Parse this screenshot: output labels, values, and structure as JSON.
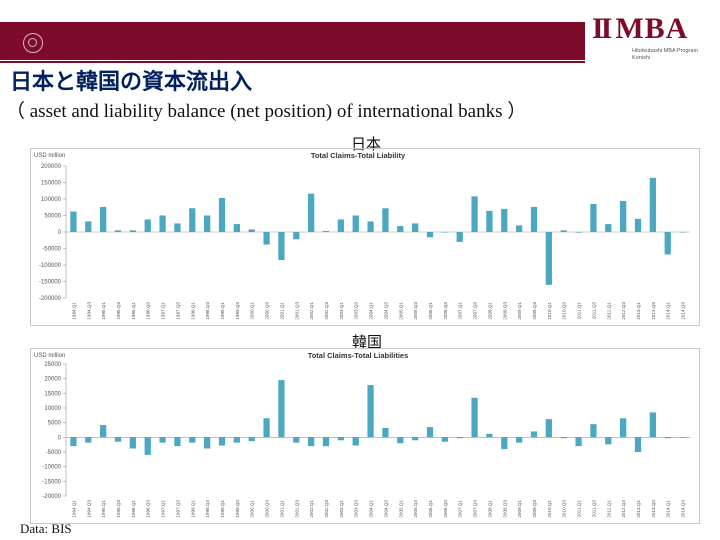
{
  "header": {
    "logo_mark": "MBA",
    "logo_ii": "II",
    "logo_line1": "Hitotsubashi MBA Program",
    "logo_line2": "Konishi"
  },
  "slide": {
    "title": "日本と韓国の資本流出入",
    "subtitle": "（ asset and liability balance (net position) of international banks ）",
    "source": "Data: BIS"
  },
  "colors": {
    "banner": "#7d0b2a",
    "bar": "#4ba8c0",
    "title": "#002060"
  },
  "chart_data": [
    {
      "type": "bar",
      "caption": "日本",
      "title": "Total Claims-Total Liability",
      "unit_label": "USD million",
      "yticks": [
        200000,
        150000,
        100000,
        50000,
        0,
        -50000,
        -100000,
        -150000,
        -200000
      ],
      "ytick_labels": [
        "200000",
        "150000",
        "100000",
        "50000",
        "0",
        "-50000",
        "-100000",
        "-150000",
        "-200000"
      ],
      "ylim": [
        -200000,
        200000
      ],
      "categories": [
        "1994.Q1",
        "1994.Q3",
        "1995.Q1",
        "1995.Q3",
        "1996.Q1",
        "1996.Q3",
        "1997.Q1",
        "1997.Q3",
        "1998.Q1",
        "1998.Q3",
        "1999.Q1",
        "1999.Q3",
        "2000.Q1",
        "2000.Q3",
        "2001.Q1",
        "2001.Q3",
        "2002.Q1",
        "2002.Q3",
        "2003.Q1",
        "2003.Q3",
        "2004.Q1",
        "2004.Q3",
        "2005.Q1",
        "2005.Q3",
        "2006.Q1",
        "2006.Q3",
        "2007.Q1",
        "2007.Q3",
        "2008.Q1",
        "2008.Q3",
        "2009.Q1",
        "2009.Q3",
        "2010.Q1",
        "2010.Q3",
        "2011.Q1",
        "2011.Q3",
        "2012.Q1",
        "2012.Q3",
        "2013.Q1",
        "2013.Q3",
        "2014.Q1",
        "2014.Q3"
      ],
      "values": [
        62000,
        32000,
        76000,
        5000,
        5000,
        38000,
        50000,
        26000,
        72000,
        50000,
        103000,
        24000,
        8000,
        -38000,
        -85000,
        -22000,
        116000,
        3000,
        38000,
        50000,
        32000,
        72000,
        18000,
        26000,
        -16000,
        0,
        -30000,
        108000,
        64000,
        70000,
        20000,
        76000,
        -160000,
        5000,
        -2000,
        85000,
        24000,
        94000,
        40000,
        164000,
        -68000,
        0
      ]
    },
    {
      "type": "bar",
      "caption": "韓国",
      "title": "Total Claims-Total Liabilities",
      "unit_label": "USD million",
      "yticks": [
        25000,
        20000,
        15000,
        10000,
        5000,
        0,
        -5000,
        -10000,
        -15000,
        -20000
      ],
      "ytick_labels": [
        "25000",
        "20000",
        "15000",
        "10000",
        "5000",
        "0",
        "-5000",
        "-10000",
        "-15000",
        "-20000"
      ],
      "ylim": [
        -20000,
        25000
      ],
      "categories": [
        "1994.Q1",
        "1994.Q3",
        "1995.Q1",
        "1995.Q3",
        "1996.Q1",
        "1996.Q3",
        "1997.Q1",
        "1997.Q3",
        "1998.Q1",
        "1998.Q3",
        "1999.Q1",
        "1999.Q3",
        "2000.Q1",
        "2000.Q3",
        "2001.Q1",
        "2001.Q3",
        "2002.Q1",
        "2002.Q3",
        "2003.Q1",
        "2003.Q3",
        "2004.Q1",
        "2004.Q3",
        "2005.Q1",
        "2005.Q3",
        "2006.Q1",
        "2006.Q3",
        "2007.Q1",
        "2007.Q3",
        "2008.Q1",
        "2008.Q3",
        "2009.Q1",
        "2009.Q3",
        "2010.Q1",
        "2010.Q3",
        "2011.Q1",
        "2011.Q3",
        "2012.Q1",
        "2012.Q3",
        "2013.Q1",
        "2013.Q3",
        "2014.Q1",
        "2014.Q3"
      ],
      "values": [
        -3000,
        -1800,
        4200,
        -1500,
        -3800,
        -6000,
        -1800,
        -3000,
        -1800,
        -3800,
        -2800,
        -1800,
        -1300,
        6500,
        19500,
        -1800,
        -3000,
        -3000,
        -1000,
        -2800,
        17800,
        3200,
        -2000,
        -1000,
        3500,
        -1500,
        -300,
        13500,
        1200,
        -4000,
        -1800,
        2000,
        6200,
        -300,
        -3000,
        4500,
        -2400,
        6500,
        -5000,
        8500,
        -300,
        0
      ]
    }
  ]
}
